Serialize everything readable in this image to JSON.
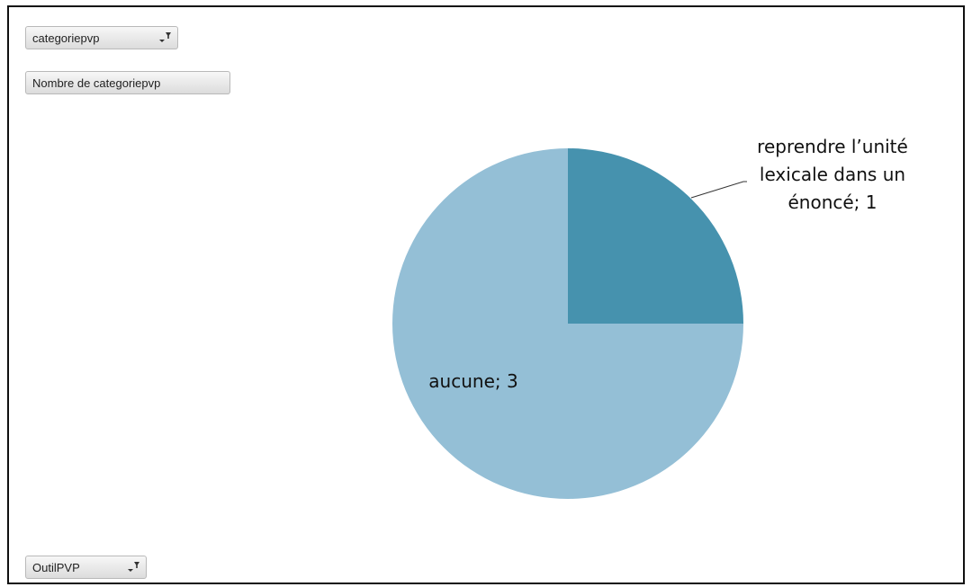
{
  "pivot_fields": {
    "category_filter": "categoriepvp",
    "value_field": "Nombre de categoriepvp",
    "axis_filter": "OutilPVP"
  },
  "icons": {
    "filter": "filter-dropdown-icon"
  },
  "colors": {
    "slice_dark": "#4692ae",
    "slice_light": "#94bfd6",
    "leader_line": "#333333",
    "frame": "#111111"
  },
  "chart_data": {
    "type": "pie",
    "categories": [
      "reprendre l’unité lexicale dans un énoncé",
      "aucune"
    ],
    "values": [
      1,
      3
    ],
    "data_labels": [
      [
        "reprendre l’unité",
        "lexicale dans un",
        "énoncé; 1"
      ],
      [
        "aucune; 3"
      ]
    ],
    "start_angle_deg": 0,
    "direction": "clockwise",
    "legend": "none"
  }
}
